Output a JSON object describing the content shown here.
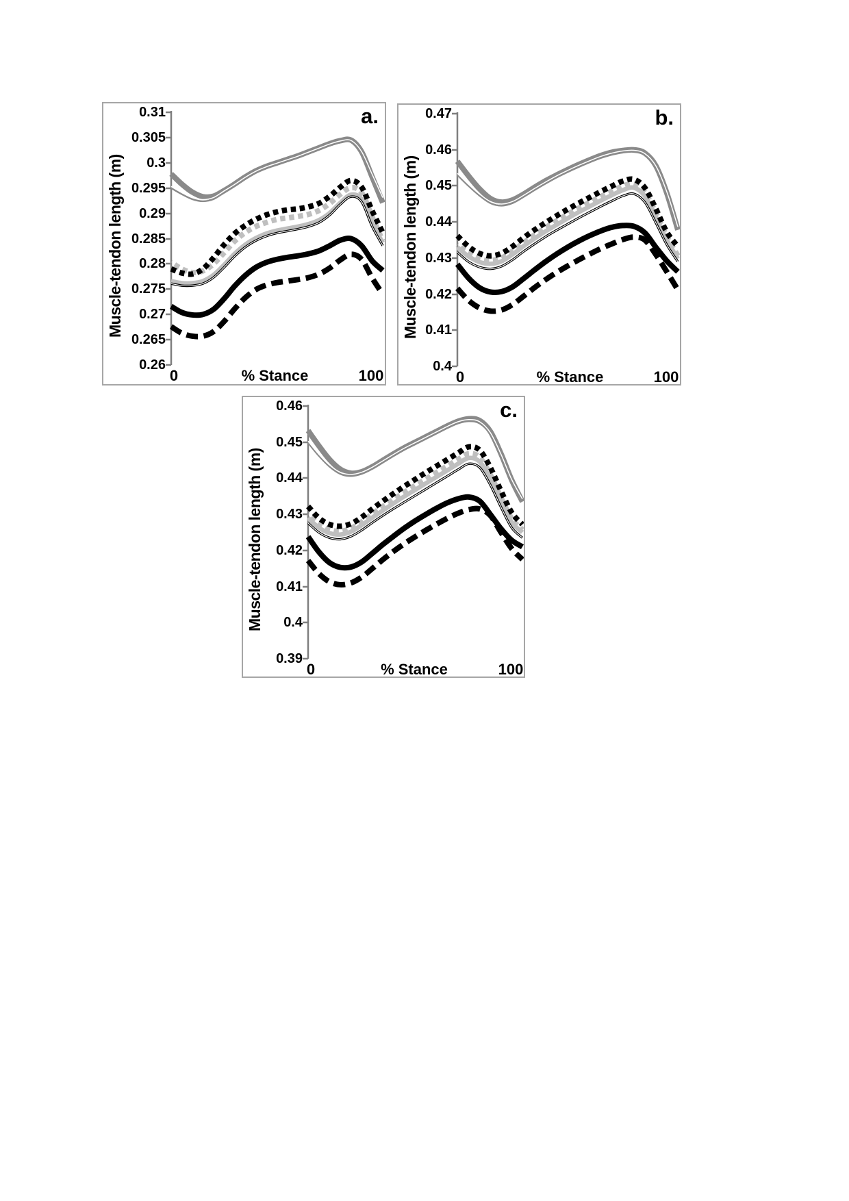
{
  "page": {
    "background": "#ffffff"
  },
  "colors": {
    "dark_gray": "#8a8a8a",
    "light_gray": "#bfbfbf",
    "black": "#000000",
    "axis": "#7f7f7f",
    "panel_border": "#a6a6a6",
    "white": "#ffffff"
  },
  "chart_data": [
    {
      "id": "a",
      "type": "line",
      "panel_label": "a.",
      "ylabel": "Muscle-tendon length (m)",
      "xlabel": "% Stance",
      "x_tick_labels": [
        "0",
        "100"
      ],
      "xlim": [
        0,
        100
      ],
      "ylim": [
        0.26,
        0.31
      ],
      "grid": false,
      "legend": "none",
      "yticks": [
        0.26,
        0.265,
        0.27,
        0.275,
        0.28,
        0.285,
        0.29,
        0.295,
        0.3,
        0.305,
        0.31
      ],
      "ytick_labels": [
        "0.26",
        "0.265",
        "0.27",
        "0.275",
        "0.28",
        "0.285",
        "0.29",
        "0.295",
        "0.3",
        "0.305",
        "0.31"
      ],
      "x": [
        0,
        5,
        10,
        15,
        20,
        25,
        30,
        35,
        40,
        45,
        50,
        55,
        60,
        65,
        70,
        75,
        80,
        85,
        90,
        95,
        100
      ],
      "series": [
        {
          "name": "thick-gray-solid",
          "color": "#8a8a8a",
          "width": 8,
          "dash": "solid",
          "values": [
            0.2978,
            0.2958,
            0.2942,
            0.2933,
            0.2934,
            0.2945,
            0.2958,
            0.2972,
            0.2984,
            0.2993,
            0.3,
            0.3007,
            0.3014,
            0.3022,
            0.303,
            0.3038,
            0.3044,
            0.3045,
            0.3022,
            0.2972,
            0.2921
          ]
        },
        {
          "name": "thin-gray-solid",
          "color": "#8a8a8a",
          "width": 2.4,
          "dash": "solid",
          "overlay": {
            "color": "#ffffff",
            "width": 1.5,
            "dy": -2.4
          },
          "values": [
            0.295,
            0.2938,
            0.2928,
            0.2924,
            0.2928,
            0.2941,
            0.2954,
            0.2968,
            0.298,
            0.2989,
            0.2996,
            0.3003,
            0.301,
            0.3018,
            0.3026,
            0.3034,
            0.304,
            0.3041,
            0.3019,
            0.2974,
            0.2928
          ]
        },
        {
          "name": "light-gray-solid",
          "color": "#bfbfbf",
          "width": 6.5,
          "dash": "solid",
          "values": [
            0.2766,
            0.2762,
            0.2762,
            0.2766,
            0.2778,
            0.2798,
            0.282,
            0.2838,
            0.2851,
            0.286,
            0.2866,
            0.287,
            0.2874,
            0.2879,
            0.2887,
            0.2901,
            0.2921,
            0.2937,
            0.2928,
            0.288,
            0.2842
          ]
        },
        {
          "name": "light-gray-dotted",
          "color": "#bfbfbf",
          "width": 8,
          "dash": "dot",
          "dash_offset": 7,
          "values": [
            0.2803,
            0.279,
            0.2783,
            0.2786,
            0.28,
            0.2822,
            0.2845,
            0.2862,
            0.2874,
            0.2882,
            0.2888,
            0.2891,
            0.2894,
            0.2898,
            0.2906,
            0.292,
            0.2938,
            0.2951,
            0.2941,
            0.2893,
            0.2845
          ]
        },
        {
          "name": "black-dotted",
          "color": "#000000",
          "width": 8,
          "dash": "dot",
          "values": [
            0.279,
            0.2782,
            0.278,
            0.279,
            0.2812,
            0.2838,
            0.286,
            0.2876,
            0.2888,
            0.2897,
            0.2903,
            0.2907,
            0.2909,
            0.2913,
            0.292,
            0.2934,
            0.2952,
            0.2965,
            0.2952,
            0.2905,
            0.2862
          ]
        },
        {
          "name": "black-thin-solid",
          "color": "#000000",
          "width": 3.4,
          "dash": "solid",
          "overlay": {
            "color": "#ffffff",
            "width": 1.1,
            "dy": 0
          },
          "values": [
            0.2761,
            0.2757,
            0.2757,
            0.2761,
            0.2773,
            0.2793,
            0.2815,
            0.2833,
            0.2846,
            0.2855,
            0.2861,
            0.2865,
            0.2869,
            0.2874,
            0.2882,
            0.2897,
            0.2918,
            0.2933,
            0.2923,
            0.2874,
            0.2836
          ]
        },
        {
          "name": "black-thick-solid",
          "color": "#000000",
          "width": 8,
          "dash": "solid",
          "values": [
            0.2716,
            0.2704,
            0.2699,
            0.27,
            0.271,
            0.2731,
            0.2756,
            0.2777,
            0.2793,
            0.2803,
            0.2809,
            0.2813,
            0.2816,
            0.282,
            0.2826,
            0.2836,
            0.2847,
            0.285,
            0.2836,
            0.2806,
            0.2787
          ]
        },
        {
          "name": "black-thick-dashed",
          "color": "#000000",
          "width": 8,
          "dash": "dash",
          "values": [
            0.2676,
            0.2663,
            0.2657,
            0.2657,
            0.2666,
            0.2686,
            0.2711,
            0.2733,
            0.2749,
            0.2758,
            0.2763,
            0.2766,
            0.2769,
            0.2773,
            0.278,
            0.2792,
            0.2808,
            0.2819,
            0.2809,
            0.2772,
            0.274
          ]
        }
      ]
    },
    {
      "id": "b",
      "type": "line",
      "panel_label": "b.",
      "ylabel": "Muscle-tendon length (m)",
      "xlabel": "% Stance",
      "x_tick_labels": [
        "0",
        "100"
      ],
      "xlim": [
        0,
        100
      ],
      "ylim": [
        0.4,
        0.47
      ],
      "grid": false,
      "legend": "none",
      "yticks": [
        0.4,
        0.41,
        0.42,
        0.43,
        0.44,
        0.45,
        0.46,
        0.47
      ],
      "ytick_labels": [
        "0.4",
        "0.41",
        "0.42",
        "0.43",
        "0.44",
        "0.45",
        "0.46",
        "0.47"
      ],
      "x": [
        0,
        5,
        10,
        15,
        20,
        25,
        30,
        35,
        40,
        45,
        50,
        55,
        60,
        65,
        70,
        75,
        80,
        85,
        90,
        95,
        100
      ],
      "series": [
        {
          "name": "thick-gray-solid",
          "color": "#8a8a8a",
          "width": 8,
          "dash": "solid",
          "values": [
            0.4568,
            0.4528,
            0.4492,
            0.4465,
            0.4455,
            0.4461,
            0.4477,
            0.4496,
            0.4514,
            0.453,
            0.4545,
            0.4559,
            0.4572,
            0.4584,
            0.4593,
            0.4598,
            0.46,
            0.4591,
            0.4556,
            0.448,
            0.4378
          ]
        },
        {
          "name": "thin-gray-solid",
          "color": "#8a8a8a",
          "width": 2.4,
          "dash": "solid",
          "overlay": {
            "color": "#ffffff",
            "width": 1.5,
            "dy": -2.4
          },
          "values": [
            0.453,
            0.45,
            0.4473,
            0.4452,
            0.4445,
            0.4452,
            0.4469,
            0.4488,
            0.4506,
            0.4523,
            0.4538,
            0.4552,
            0.4565,
            0.4577,
            0.4586,
            0.4592,
            0.4594,
            0.4585,
            0.4551,
            0.4479,
            0.4382
          ]
        },
        {
          "name": "light-gray-solid",
          "color": "#bfbfbf",
          "width": 6.5,
          "dash": "solid",
          "values": [
            0.433,
            0.4305,
            0.4289,
            0.4284,
            0.4291,
            0.431,
            0.4333,
            0.4354,
            0.4374,
            0.4392,
            0.441,
            0.4427,
            0.4443,
            0.4459,
            0.4474,
            0.4488,
            0.4495,
            0.4472,
            0.4415,
            0.435,
            0.4298
          ]
        },
        {
          "name": "light-gray-dotted",
          "color": "#bfbfbf",
          "width": 8,
          "dash": "dot",
          "dash_offset": 7,
          "values": [
            0.4337,
            0.4313,
            0.4298,
            0.4293,
            0.43,
            0.4319,
            0.4342,
            0.4364,
            0.4384,
            0.4403,
            0.4421,
            0.4438,
            0.4454,
            0.447,
            0.4485,
            0.4499,
            0.4505,
            0.4482,
            0.4425,
            0.436,
            0.4306
          ]
        },
        {
          "name": "black-dotted",
          "color": "#000000",
          "width": 8,
          "dash": "dot",
          "values": [
            0.4362,
            0.4332,
            0.4313,
            0.4306,
            0.4313,
            0.4332,
            0.4356,
            0.4378,
            0.4398,
            0.4417,
            0.4435,
            0.4452,
            0.4468,
            0.4484,
            0.4499,
            0.4513,
            0.4518,
            0.4495,
            0.4437,
            0.4372,
            0.4332
          ]
        },
        {
          "name": "black-thin-solid",
          "color": "#000000",
          "width": 3.4,
          "dash": "solid",
          "overlay": {
            "color": "#ffffff",
            "width": 1.1,
            "dy": 0
          },
          "values": [
            0.4316,
            0.429,
            0.4275,
            0.427,
            0.4277,
            0.4295,
            0.4318,
            0.4339,
            0.4359,
            0.4377,
            0.4394,
            0.4411,
            0.4427,
            0.4443,
            0.4458,
            0.4472,
            0.4478,
            0.4455,
            0.4398,
            0.4337,
            0.429
          ]
        },
        {
          "name": "black-thick-solid",
          "color": "#000000",
          "width": 8,
          "dash": "solid",
          "values": [
            0.4283,
            0.4245,
            0.4218,
            0.4206,
            0.4207,
            0.422,
            0.4243,
            0.4267,
            0.429,
            0.4311,
            0.433,
            0.4347,
            0.4362,
            0.4375,
            0.4385,
            0.439,
            0.4388,
            0.437,
            0.433,
            0.4292,
            0.4262
          ]
        },
        {
          "name": "black-thick-dashed",
          "color": "#000000",
          "width": 8,
          "dash": "dash",
          "values": [
            0.4216,
            0.4183,
            0.4162,
            0.4153,
            0.4156,
            0.4171,
            0.4194,
            0.4218,
            0.424,
            0.426,
            0.4278,
            0.4295,
            0.4311,
            0.4326,
            0.4339,
            0.4351,
            0.4358,
            0.435,
            0.431,
            0.4262,
            0.4212
          ]
        }
      ]
    },
    {
      "id": "c",
      "type": "line",
      "panel_label": "c.",
      "ylabel": "Muscle-tendon length (m)",
      "xlabel": "% Stance",
      "x_tick_labels": [
        "0",
        "100"
      ],
      "xlim": [
        0,
        100
      ],
      "ylim": [
        0.39,
        0.46
      ],
      "grid": false,
      "legend": "none",
      "yticks": [
        0.39,
        0.4,
        0.41,
        0.42,
        0.43,
        0.44,
        0.45,
        0.46
      ],
      "ytick_labels": [
        "0.39",
        "0.4",
        "0.41",
        "0.42",
        "0.43",
        "0.44",
        "0.45",
        "0.46"
      ],
      "x": [
        0,
        5,
        10,
        15,
        20,
        25,
        30,
        35,
        40,
        45,
        50,
        55,
        60,
        65,
        70,
        75,
        80,
        85,
        90,
        95,
        100
      ],
      "series": [
        {
          "name": "thick-gray-solid",
          "color": "#8a8a8a",
          "width": 8,
          "dash": "solid",
          "values": [
            0.4532,
            0.449,
            0.4452,
            0.4425,
            0.4414,
            0.4418,
            0.4432,
            0.445,
            0.4468,
            0.4485,
            0.45,
            0.4515,
            0.453,
            0.4545,
            0.4558,
            0.4565,
            0.456,
            0.453,
            0.4468,
            0.4395,
            0.4335
          ]
        },
        {
          "name": "thin-gray-solid",
          "color": "#8a8a8a",
          "width": 2.4,
          "dash": "solid",
          "overlay": {
            "color": "#ffffff",
            "width": 1.5,
            "dy": -2.4
          },
          "values": [
            0.4498,
            0.4462,
            0.4432,
            0.4412,
            0.4406,
            0.4412,
            0.4426,
            0.4444,
            0.4462,
            0.4479,
            0.4494,
            0.4509,
            0.4524,
            0.4539,
            0.4552,
            0.4558,
            0.4552,
            0.4522,
            0.4462,
            0.4392,
            0.4338
          ]
        },
        {
          "name": "light-gray-solid",
          "color": "#bfbfbf",
          "width": 6.5,
          "dash": "solid",
          "values": [
            0.429,
            0.4263,
            0.4248,
            0.4244,
            0.4252,
            0.427,
            0.4291,
            0.4311,
            0.4331,
            0.435,
            0.4368,
            0.4386,
            0.4404,
            0.4422,
            0.444,
            0.4456,
            0.4446,
            0.4398,
            0.4335,
            0.4278,
            0.425
          ]
        },
        {
          "name": "light-gray-dotted",
          "color": "#bfbfbf",
          "width": 8,
          "dash": "dot",
          "dash_offset": 7,
          "values": [
            0.43,
            0.4272,
            0.4257,
            0.4253,
            0.4261,
            0.4279,
            0.4301,
            0.4322,
            0.4342,
            0.4361,
            0.438,
            0.4398,
            0.4416,
            0.4434,
            0.4452,
            0.4468,
            0.4458,
            0.441,
            0.4346,
            0.4288,
            0.4257
          ]
        },
        {
          "name": "black-dotted",
          "color": "#000000",
          "width": 8,
          "dash": "dot",
          "values": [
            0.4322,
            0.429,
            0.4272,
            0.4267,
            0.4274,
            0.4292,
            0.4315,
            0.4337,
            0.4358,
            0.4378,
            0.4397,
            0.4416,
            0.4434,
            0.4452,
            0.447,
            0.4487,
            0.4478,
            0.443,
            0.4365,
            0.4305,
            0.4272
          ]
        },
        {
          "name": "black-thin-solid",
          "color": "#000000",
          "width": 3.4,
          "dash": "solid",
          "overlay": {
            "color": "#ffffff",
            "width": 1.1,
            "dy": 0
          },
          "values": [
            0.4276,
            0.425,
            0.4235,
            0.4231,
            0.4239,
            0.4256,
            0.4277,
            0.4297,
            0.4316,
            0.4334,
            0.4352,
            0.437,
            0.4388,
            0.4406,
            0.4424,
            0.444,
            0.443,
            0.4382,
            0.432,
            0.4263,
            0.4235
          ]
        },
        {
          "name": "black-thick-solid",
          "color": "#000000",
          "width": 8,
          "dash": "solid",
          "values": [
            0.4238,
            0.4196,
            0.4166,
            0.4153,
            0.4154,
            0.4168,
            0.4192,
            0.4217,
            0.424,
            0.4262,
            0.4282,
            0.43,
            0.4317,
            0.4332,
            0.4343,
            0.4348,
            0.4337,
            0.43,
            0.426,
            0.4228,
            0.421
          ]
        },
        {
          "name": "black-thick-dashed",
          "color": "#000000",
          "width": 8,
          "dash": "dash",
          "values": [
            0.4172,
            0.4136,
            0.4113,
            0.4105,
            0.411,
            0.4126,
            0.415,
            0.4175,
            0.4198,
            0.4219,
            0.4238,
            0.4256,
            0.4273,
            0.4289,
            0.4303,
            0.4313,
            0.4315,
            0.4297,
            0.425,
            0.4205,
            0.4175
          ]
        }
      ]
    }
  ]
}
